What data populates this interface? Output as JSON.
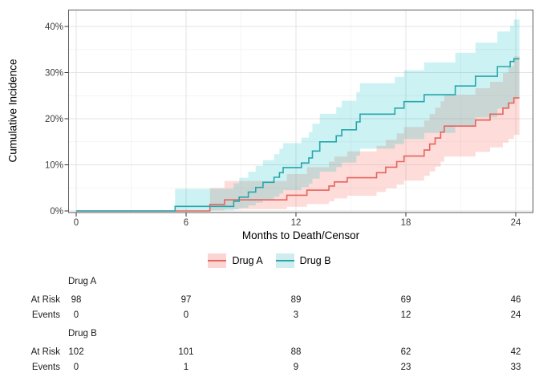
{
  "chart_data": {
    "type": "line",
    "subtype": "step-cumulative-incidence-with-confidence-bands",
    "title": "",
    "xlabel": "Months to Death/Censor",
    "ylabel": "Cumulative Incidence",
    "xlim": [
      0,
      24
    ],
    "ylim": [
      0,
      42
    ],
    "grid": true,
    "legend_position": "bottom",
    "x_ticks": {
      "values": [
        0,
        6,
        12,
        18,
        24
      ],
      "labels": [
        "0",
        "6",
        "12",
        "18",
        "24"
      ]
    },
    "y_ticks": {
      "values": [
        0,
        10,
        20,
        30,
        40
      ],
      "labels": [
        "0%",
        "10%",
        "20%",
        "30%",
        "40%"
      ]
    },
    "x_minor": [
      3,
      9,
      15,
      21
    ],
    "y_minor": [
      5,
      15,
      25,
      35
    ],
    "end_month": 24.2,
    "series": [
      {
        "name": "Drug A",
        "line_color": "#E5645E",
        "band_color": "rgba(248,118,109,0.26)",
        "legend_fill": "#F9D5D3",
        "steps": [
          [
            0,
            0
          ],
          [
            7.3,
            1.4
          ],
          [
            8.1,
            2.4
          ],
          [
            11.5,
            3.4
          ],
          [
            12.6,
            4.5
          ],
          [
            13.8,
            5.4
          ],
          [
            14.1,
            6.3
          ],
          [
            14.8,
            7.2
          ],
          [
            16.4,
            8.3
          ],
          [
            16.9,
            9.5
          ],
          [
            17.5,
            10.7
          ],
          [
            17.9,
            11.9
          ],
          [
            19.0,
            13.2
          ],
          [
            19.3,
            14.5
          ],
          [
            19.6,
            15.8
          ],
          [
            19.9,
            17.1
          ],
          [
            20.1,
            18.4
          ],
          [
            21.8,
            19.7
          ],
          [
            22.6,
            21.0
          ],
          [
            23.3,
            22.3
          ],
          [
            23.6,
            23.4
          ],
          [
            23.9,
            24.5
          ]
        ],
        "band": [
          [
            7.3,
            0.1,
            5.0
          ],
          [
            8.1,
            0.4,
            6.5
          ],
          [
            11.5,
            0.9,
            8.0
          ],
          [
            12.6,
            1.5,
            9.5
          ],
          [
            13.8,
            2.1,
            10.7
          ],
          [
            14.1,
            2.7,
            11.8
          ],
          [
            14.8,
            3.3,
            12.9
          ],
          [
            16.4,
            4.1,
            14.1
          ],
          [
            16.9,
            4.9,
            15.4
          ],
          [
            17.5,
            5.7,
            16.8
          ],
          [
            17.9,
            6.6,
            18.2
          ],
          [
            19.0,
            7.6,
            19.6
          ],
          [
            19.3,
            8.6,
            21.0
          ],
          [
            19.6,
            9.6,
            22.4
          ],
          [
            19.9,
            10.7,
            23.8
          ],
          [
            20.1,
            11.8,
            25.2
          ],
          [
            21.8,
            12.8,
            26.6
          ],
          [
            22.6,
            13.8,
            28.0
          ],
          [
            23.3,
            14.8,
            29.9
          ],
          [
            23.6,
            15.6,
            31.4
          ],
          [
            23.9,
            16.5,
            33.5
          ]
        ]
      },
      {
        "name": "Drug B",
        "line_color": "#26A7AB",
        "band_color": "rgba(0,191,196,0.20)",
        "legend_fill": "#CFEDEE",
        "steps": [
          [
            0,
            0
          ],
          [
            5.4,
            1.0
          ],
          [
            8.6,
            2.1
          ],
          [
            8.9,
            3.0
          ],
          [
            9.4,
            4.1
          ],
          [
            9.8,
            5.1
          ],
          [
            10.2,
            6.2
          ],
          [
            10.8,
            7.3
          ],
          [
            11.1,
            8.3
          ],
          [
            11.3,
            9.4
          ],
          [
            12.3,
            10.4
          ],
          [
            12.7,
            11.5
          ],
          [
            12.9,
            13.0
          ],
          [
            13.3,
            15.0
          ],
          [
            14.2,
            16.3
          ],
          [
            14.5,
            17.6
          ],
          [
            15.3,
            19.3
          ],
          [
            15.5,
            21.0
          ],
          [
            17.4,
            22.3
          ],
          [
            17.9,
            23.7
          ],
          [
            19.0,
            25.2
          ],
          [
            20.7,
            27.1
          ],
          [
            21.8,
            29.2
          ],
          [
            23.0,
            31.3
          ],
          [
            23.7,
            32.4
          ],
          [
            23.9,
            33.0
          ]
        ],
        "band": [
          [
            5.4,
            0.1,
            4.8
          ],
          [
            8.6,
            0.3,
            6.0
          ],
          [
            8.9,
            0.7,
            7.2
          ],
          [
            9.4,
            1.2,
            8.5
          ],
          [
            9.8,
            1.8,
            9.8
          ],
          [
            10.2,
            2.4,
            11.0
          ],
          [
            10.8,
            3.1,
            12.3
          ],
          [
            11.1,
            3.8,
            13.5
          ],
          [
            11.3,
            4.5,
            14.7
          ],
          [
            12.3,
            5.2,
            15.9
          ],
          [
            12.7,
            5.9,
            17.1
          ],
          [
            12.9,
            7.0,
            18.9
          ],
          [
            13.3,
            8.5,
            21.1
          ],
          [
            14.2,
            9.5,
            22.5
          ],
          [
            14.5,
            10.5,
            23.9
          ],
          [
            15.3,
            12.0,
            25.8
          ],
          [
            15.5,
            13.5,
            27.7
          ],
          [
            17.4,
            14.5,
            29.1
          ],
          [
            17.9,
            15.6,
            30.5
          ],
          [
            19.0,
            16.9,
            32.2
          ],
          [
            20.7,
            18.5,
            34.3
          ],
          [
            21.8,
            20.3,
            36.5
          ],
          [
            23.0,
            22.2,
            38.9
          ],
          [
            23.7,
            23.3,
            40.1
          ],
          [
            23.9,
            24.5,
            41.5
          ]
        ]
      }
    ]
  },
  "style": {
    "grid_major_color": "#E3E3E3",
    "grid_minor_color": "#F1F1F1",
    "panel_border_color": "#5B5B5B",
    "tick_color": "#333333",
    "background": "#FFFFFF"
  },
  "risk_table": {
    "months": [
      0,
      6,
      12,
      18,
      24
    ],
    "row_labels": {
      "at_risk": "At Risk",
      "events": "Events"
    },
    "groups": [
      {
        "name": "Drug A",
        "at_risk": [
          98,
          97,
          89,
          69,
          46
        ],
        "events": [
          0,
          0,
          3,
          12,
          24
        ]
      },
      {
        "name": "Drug B",
        "at_risk": [
          102,
          101,
          88,
          62,
          42
        ],
        "events": [
          0,
          1,
          9,
          23,
          33
        ]
      }
    ]
  }
}
